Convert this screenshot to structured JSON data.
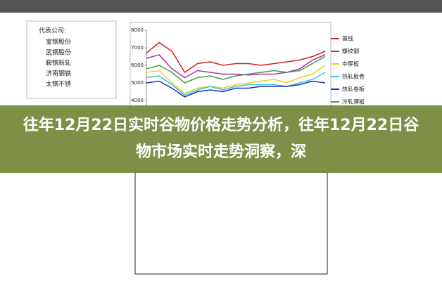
{
  "companies": {
    "heading": "代表公司:",
    "items": [
      "宝钢股份",
      "武钢股份",
      "鞍钢新轧",
      "济南钢铁",
      "太钢不锈"
    ]
  },
  "chart_data": {
    "type": "line",
    "categories": [
      null,
      null,
      null,
      null,
      null,
      null,
      null,
      null,
      null,
      null,
      null,
      null,
      null,
      null,
      null
    ],
    "ylim": [
      3500,
      8000
    ],
    "yticks": [
      4000,
      5000,
      6000,
      7000,
      8000
    ],
    "series": [
      {
        "name": "普线",
        "color": "#d42020",
        "values": [
          6700,
          7300,
          6800,
          5600,
          6100,
          6200,
          6000,
          6100,
          6100,
          6000,
          6100,
          6200,
          6300,
          6500,
          6800
        ]
      },
      {
        "name": "螺纹钢",
        "color": "#b030b0",
        "values": [
          6400,
          6600,
          5800,
          5300,
          5700,
          5600,
          5500,
          5500,
          5450,
          5500,
          5500,
          5600,
          5800,
          6300,
          6600
        ]
      },
      {
        "name": "中厚板",
        "color": "#e8d020",
        "values": [
          5600,
          5700,
          5000,
          4400,
          4700,
          4800,
          4700,
          4900,
          5000,
          5100,
          5200,
          5000,
          5300,
          5500,
          6000
        ]
      },
      {
        "name": "热轧板卷",
        "color": "#30c8e0",
        "values": [
          5300,
          5400,
          4900,
          4300,
          4600,
          4800,
          4600,
          4800,
          4900,
          4900,
          4900,
          4800,
          5000,
          5200,
          5600
        ]
      },
      {
        "name": "热轧卷板",
        "color": "#2030c0",
        "values": [
          5000,
          5100,
          4700,
          4200,
          4500,
          4600,
          4500,
          4700,
          4700,
          4800,
          4800,
          4800,
          4900,
          5100,
          5000
        ]
      },
      {
        "name": "冷轧薄板",
        "color": "#40a040",
        "values": [
          5800,
          6000,
          5600,
          5000,
          5300,
          5400,
          5200,
          5400,
          5500,
          5600,
          5700,
          5600,
          5700,
          6100,
          6500
        ]
      }
    ]
  },
  "banner": {
    "title": "往年12月22日实时谷物价格走势分析，往年12月22日谷物市场实时走势洞察，深"
  }
}
